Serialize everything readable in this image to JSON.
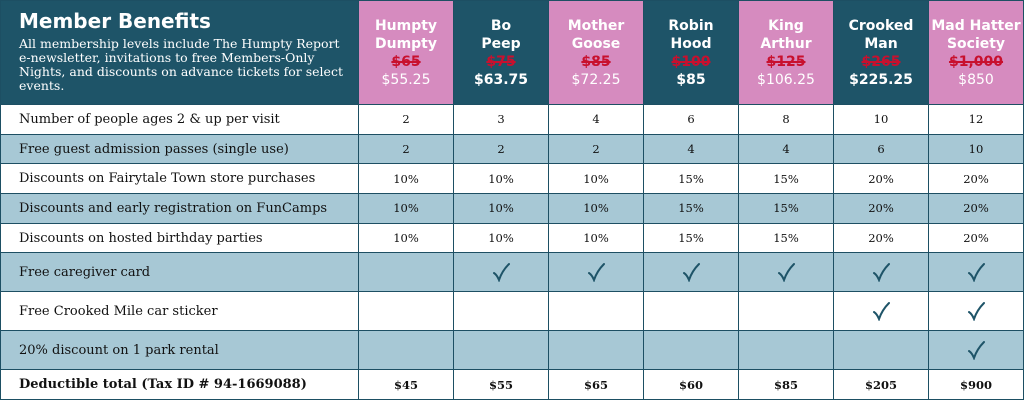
{
  "header": {
    "title": "Member Benefits",
    "description": "All membership levels include The Humpty Report e-newsletter, invitations to free Members-Only Nights, and discounts on advance tickets for select events."
  },
  "columns": [
    {
      "name": "Humpty\nDumpty",
      "old_price": "$65",
      "price": "$55.25",
      "color": "pink"
    },
    {
      "name": "Bo\nPeep",
      "old_price": "$75",
      "price": "$63.75",
      "color": "dark"
    },
    {
      "name": "Mother\nGoose",
      "old_price": "$85",
      "price": "$72.25",
      "color": "pink"
    },
    {
      "name": "Robin\nHood",
      "old_price": "$100",
      "price": "$85",
      "color": "dark"
    },
    {
      "name": "King\nArthur",
      "old_price": "$125",
      "price": "$106.25",
      "color": "pink"
    },
    {
      "name": "Crooked\nMan",
      "old_price": "$265",
      "price": "$225.25",
      "color": "dark"
    },
    {
      "name": "Mad Hatter\nSociety",
      "old_price": "$1,000",
      "price": "$850",
      "color": "pink"
    }
  ],
  "rows": [
    {
      "label": "Number of people ages 2 & up per visit",
      "cells": [
        "2",
        "3",
        "4",
        "6",
        "8",
        "10",
        "12"
      ]
    },
    {
      "label": "Free guest admission passes (single use)",
      "cells": [
        "2",
        "2",
        "2",
        "4",
        "4",
        "6",
        "10"
      ]
    },
    {
      "label": "Discounts on Fairytale Town store purchases",
      "cells": [
        "10%",
        "10%",
        "10%",
        "15%",
        "15%",
        "20%",
        "20%"
      ]
    },
    {
      "label": "Discounts and early registration on FunCamps",
      "cells": [
        "10%",
        "10%",
        "10%",
        "15%",
        "15%",
        "20%",
        "20%"
      ]
    },
    {
      "label": "Discounts on hosted birthday parties",
      "cells": [
        "10%",
        "10%",
        "10%",
        "15%",
        "15%",
        "20%",
        "20%"
      ]
    },
    {
      "label": "Free caregiver card",
      "cells": [
        false,
        true,
        true,
        true,
        true,
        true,
        true
      ]
    },
    {
      "label": "Free Crooked Mile car sticker",
      "cells": [
        false,
        false,
        false,
        false,
        false,
        true,
        true
      ]
    },
    {
      "label": "20% discount on 1 park rental",
      "cells": [
        false,
        false,
        false,
        false,
        false,
        false,
        true
      ]
    },
    {
      "label": "Deductible total (Tax ID # 94-1669088)",
      "cells": [
        "$45",
        "$55",
        "$65",
        "$60",
        "$85",
        "$205",
        "$900"
      ]
    }
  ]
}
